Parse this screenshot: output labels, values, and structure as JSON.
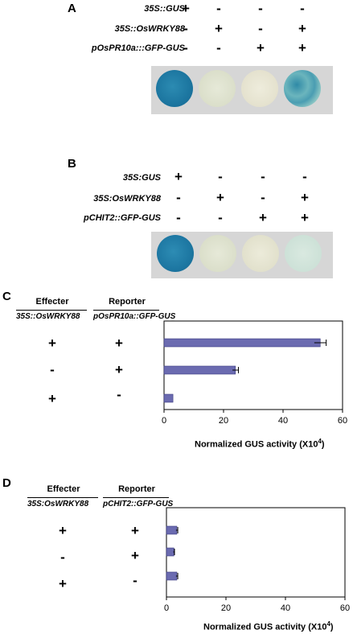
{
  "panelA": {
    "letter": "A",
    "rows": [
      {
        "label": "35S::GUS",
        "signs": [
          "+",
          "-",
          "-",
          "-"
        ]
      },
      {
        "label": "35S::OsWRKY88",
        "signs": [
          "-",
          "+",
          "-",
          "+"
        ]
      },
      {
        "label": "pOsPR10a:::GFP-GUS",
        "signs": [
          "-",
          "-",
          "+",
          "+"
        ]
      }
    ],
    "plates": [
      {
        "color": "#1d7ea6",
        "pattern": "dark-blue"
      },
      {
        "color": "#dfe3cf",
        "pattern": "pale"
      },
      {
        "color": "#e9e6d4",
        "pattern": "pale"
      },
      {
        "color": "#5aa7b0",
        "pattern": "mottled-blue"
      }
    ]
  },
  "panelB": {
    "letter": "B",
    "rows": [
      {
        "label": "35S:GUS",
        "signs": [
          "+",
          "-",
          "-",
          "-"
        ]
      },
      {
        "label": "35S:OsWRKY88",
        "signs": [
          "-",
          "+",
          "-",
          "+"
        ]
      },
      {
        "label": "pCHIT2::GFP-GUS",
        "signs": [
          "-",
          "-",
          "+",
          "+"
        ]
      }
    ],
    "plates": [
      {
        "color": "#1f7ea7",
        "pattern": "dark-blue"
      },
      {
        "color": "#dfe3cf",
        "pattern": "pale"
      },
      {
        "color": "#e6e5d0",
        "pattern": "pale"
      },
      {
        "color": "#cfe2d8",
        "pattern": "pale-green"
      }
    ]
  },
  "panelC": {
    "letter": "C",
    "effecter_header": "Effecter",
    "effecter_construct": "35S::OsWRKY88",
    "reporter_header": "Reporter",
    "reporter_construct": "pOsPR10a::GFP-GUS",
    "rows": [
      {
        "effecter": "+",
        "reporter": "+"
      },
      {
        "effecter": "-",
        "reporter": "+"
      },
      {
        "effecter": "+",
        "reporter": "-"
      }
    ]
  },
  "panelD": {
    "letter": "D",
    "effecter_header": "Effecter",
    "effecter_construct": "35S:OsWRKY88",
    "reporter_header": "Reporter",
    "reporter_construct": "pCHIT2::GFP-GUS",
    "rows": [
      {
        "effecter": "+",
        "reporter": "+"
      },
      {
        "effecter": "-",
        "reporter": "+"
      },
      {
        "effecter": "+",
        "reporter": "-"
      }
    ]
  },
  "chart_data": [
    {
      "type": "bar",
      "orientation": "horizontal",
      "panel": "C",
      "categories": [
        "1",
        "2",
        "3"
      ],
      "values": [
        52.5,
        24,
        3
      ],
      "errors": [
        2,
        1,
        0
      ],
      "xlim": [
        0,
        60
      ],
      "xticks": [
        "0",
        "20",
        "40",
        "60"
      ],
      "xlabel": "Normalized GUS activity (X10",
      "xlabel_sup": "4",
      "xlabel_end": ")",
      "bar_color": "#6b6bb0",
      "grid": false
    },
    {
      "type": "bar",
      "orientation": "horizontal",
      "panel": "D",
      "categories": [
        "1",
        "2",
        "3"
      ],
      "values": [
        3.5,
        2.5,
        3.5
      ],
      "errors": [
        0.3,
        0.2,
        0.3
      ],
      "xlim": [
        0,
        60
      ],
      "xticks": [
        "0",
        "20",
        "40",
        "60"
      ],
      "xlabel": "Normalized GUS activity (X10",
      "xlabel_sup": "4",
      "xlabel_end": ")",
      "bar_color": "#6b6bb0",
      "grid": false
    }
  ]
}
